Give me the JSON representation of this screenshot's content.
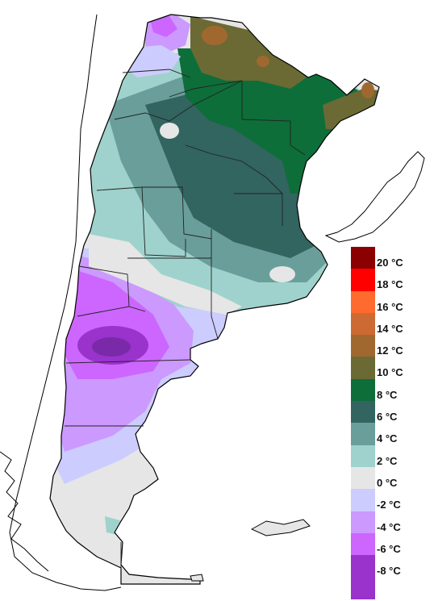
{
  "legend": {
    "unit": "°C",
    "entries": [
      {
        "label": "20 °C",
        "color": "#8b0000"
      },
      {
        "label": "18 °C",
        "color": "#ff0000"
      },
      {
        "label": "16 °C",
        "color": "#ff6a2e"
      },
      {
        "label": "14 °C",
        "color": "#cd6932"
      },
      {
        "label": "12 °C",
        "color": "#a0682f"
      },
      {
        "label": "10 °C",
        "color": "#6b6a34"
      },
      {
        "label": "8 °C",
        "color": "#0d6e3a"
      },
      {
        "label": "6 °C",
        "color": "#326460"
      },
      {
        "label": "4 °C",
        "color": "#6a9e9a"
      },
      {
        "label": "2 °C",
        "color": "#9fd2cc"
      },
      {
        "label": "0 °C",
        "color": "#e6e6e6"
      },
      {
        "label": "-2 °C",
        "color": "#ccccff"
      },
      {
        "label": "-4 °C",
        "color": "#cc99ff"
      },
      {
        "label": "-6 °C",
        "color": "#cc66ff"
      },
      {
        "label": "-8 °C",
        "color": "#9933cc"
      }
    ],
    "bottom_color": "#9933cc"
  }
}
